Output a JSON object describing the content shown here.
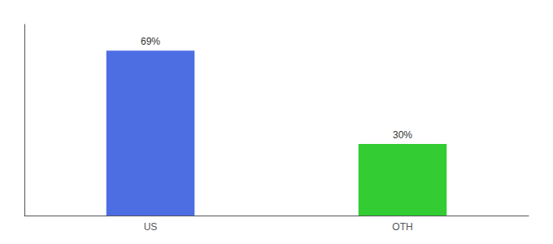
{
  "chart_data": {
    "type": "bar",
    "categories": [
      "US",
      "OTH"
    ],
    "values": [
      69,
      30
    ],
    "value_labels": [
      "69%",
      "30%"
    ],
    "colors": [
      "#4d6ee3",
      "#33cc33"
    ],
    "ylim": [
      0,
      80
    ],
    "data_labels": true,
    "tick_labels": "x",
    "grid": false
  }
}
